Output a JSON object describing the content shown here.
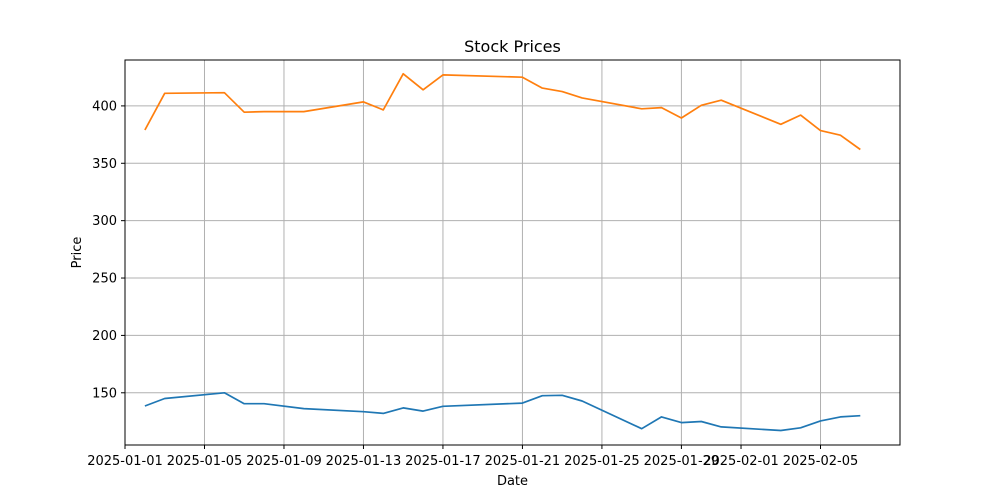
{
  "chart_data": {
    "type": "line",
    "title": "Stock Prices",
    "xlabel": "Date",
    "ylabel": "Price",
    "ylim": [
      104.5,
      440
    ],
    "xlim": [
      "2025-01-01",
      "2025-02-09"
    ],
    "grid": true,
    "x_ticks": [
      "2025-01-01",
      "2025-01-05",
      "2025-01-09",
      "2025-01-13",
      "2025-01-17",
      "2025-01-21",
      "2025-01-25",
      "2025-01-29",
      "2025-02-01",
      "2025-02-05"
    ],
    "y_ticks": [
      150,
      200,
      250,
      300,
      350,
      400
    ],
    "x": [
      "2025-01-02",
      "2025-01-03",
      "2025-01-06",
      "2025-01-07",
      "2025-01-08",
      "2025-01-10",
      "2025-01-13",
      "2025-01-14",
      "2025-01-15",
      "2025-01-16",
      "2025-01-17",
      "2025-01-21",
      "2025-01-22",
      "2025-01-23",
      "2025-01-24",
      "2025-01-27",
      "2025-01-28",
      "2025-01-29",
      "2025-01-30",
      "2025-01-31",
      "2025-02-03",
      "2025-02-04",
      "2025-02-05",
      "2025-02-06",
      "2025-02-07"
    ],
    "series": [
      {
        "color": "#1f77b4",
        "values": [
          138.5,
          145,
          150,
          140.5,
          140.5,
          136.2,
          133.5,
          132,
          136.8,
          134,
          138.2,
          141,
          147.5,
          147.8,
          142.8,
          118.7,
          129,
          124,
          125,
          120.3,
          117.1,
          119.5,
          125.5,
          129,
          130
        ]
      },
      {
        "color": "#ff7f0e",
        "values": [
          379,
          411,
          411.5,
          394.5,
          395,
          395,
          403.5,
          396.5,
          428,
          414,
          427,
          425,
          415.5,
          412.5,
          407,
          397.5,
          398.5,
          389.5,
          400.5,
          405,
          384,
          392,
          378.5,
          374.5,
          362
        ]
      }
    ]
  }
}
